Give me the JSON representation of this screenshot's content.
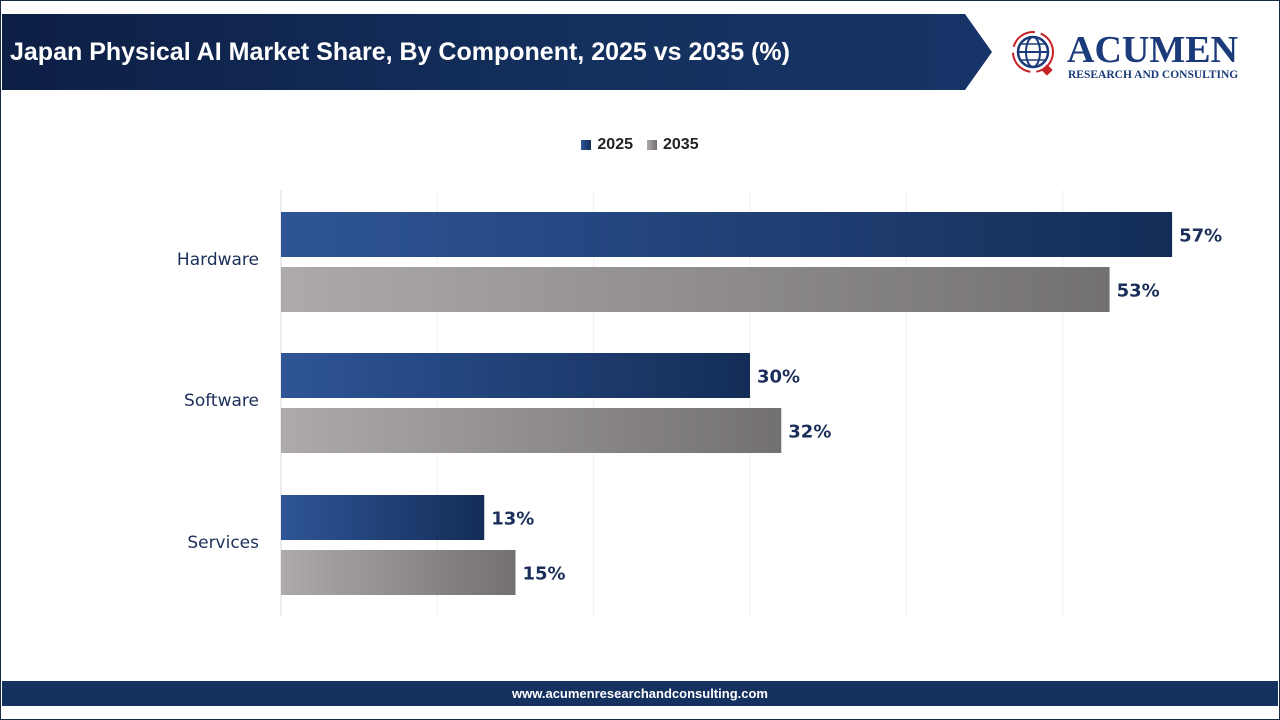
{
  "header": {
    "title": "Japan Physical AI Market Share, By Component, 2025 vs 2035 (%)"
  },
  "logo": {
    "brand": "ACUMEN",
    "tagline": "RESEARCH AND CONSULTING"
  },
  "footer": {
    "url": "www.acumenresearchandconsulting.com"
  },
  "colors": {
    "header": "#0d1f45",
    "series_2025": "#2f5597",
    "series_2025_dark": "#132d57",
    "series_2035": "#aeaaaa",
    "series_2035_dark": "#737070",
    "label": "#1b2f5a"
  },
  "chart_data": {
    "type": "bar",
    "orientation": "horizontal",
    "title": "Japan Physical AI Market Share, By Component, 2025 vs 2035 (%)",
    "categories": [
      "Hardware",
      "Software",
      "Services"
    ],
    "series": [
      {
        "name": "2025",
        "values": [
          57,
          30,
          13
        ],
        "labels": [
          "57%",
          "30%",
          "13%"
        ]
      },
      {
        "name": "2035",
        "values": [
          53,
          32,
          15
        ],
        "labels": [
          "53%",
          "32%",
          "15%"
        ]
      }
    ],
    "xlim": [
      0,
      60
    ],
    "grid": true,
    "legend": "top-center"
  }
}
